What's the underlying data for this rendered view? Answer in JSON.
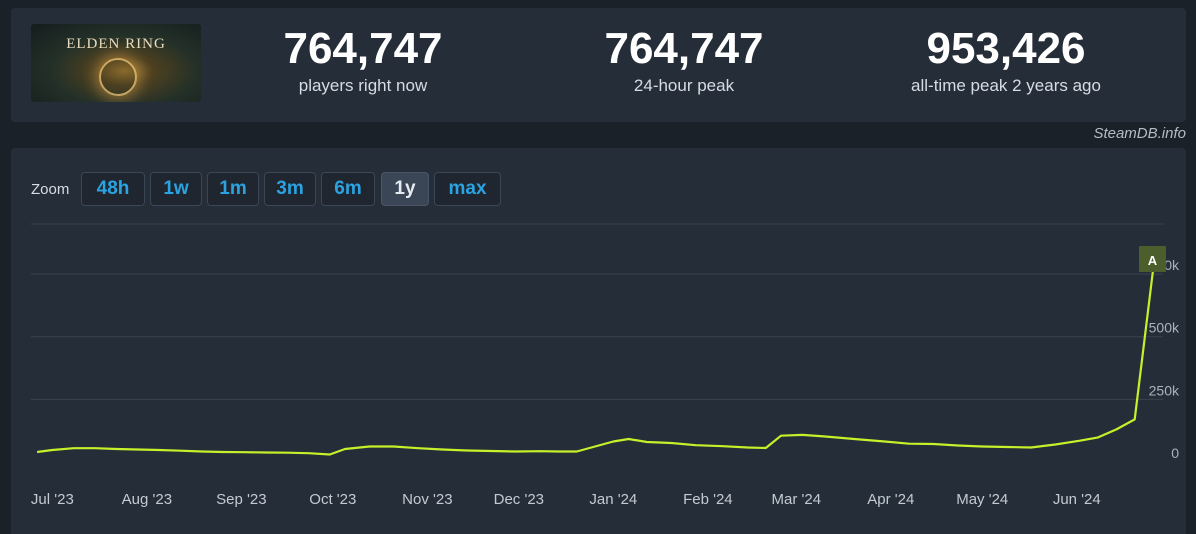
{
  "header": {
    "game_logo_text": "ELDEN RING",
    "stats": [
      {
        "value": "764,747",
        "label": "players right now"
      },
      {
        "value": "764,747",
        "label": "24-hour peak"
      },
      {
        "value": "953,426",
        "label": "all-time peak 2 years ago"
      }
    ]
  },
  "watermark": "SteamDB.info",
  "zoom": {
    "label": "Zoom",
    "buttons": [
      "48h",
      "1w",
      "1m",
      "3m",
      "6m",
      "1y",
      "max"
    ],
    "active": "1y"
  },
  "colors": {
    "line": "#c6f02a",
    "flag": "#4b5e2b",
    "grid": "#3a4350",
    "link": "#2aa3e0"
  },
  "chart_data": {
    "type": "line",
    "series": [
      {
        "values": [
          [
            "2023-06-26",
            40000
          ],
          [
            "2023-07-01",
            48000
          ],
          [
            "2023-07-08",
            55000
          ],
          [
            "2023-07-15",
            55000
          ],
          [
            "2023-07-22",
            52000
          ],
          [
            "2023-07-29",
            50000
          ],
          [
            "2023-08-05",
            48000
          ],
          [
            "2023-08-12",
            45000
          ],
          [
            "2023-08-19",
            42000
          ],
          [
            "2023-08-26",
            40000
          ],
          [
            "2023-09-02",
            39000
          ],
          [
            "2023-09-09",
            38000
          ],
          [
            "2023-09-16",
            37000
          ],
          [
            "2023-09-23",
            35000
          ],
          [
            "2023-09-30",
            30000
          ],
          [
            "2023-10-05",
            52000
          ],
          [
            "2023-10-13",
            62000
          ],
          [
            "2023-10-21",
            62000
          ],
          [
            "2023-10-29",
            55000
          ],
          [
            "2023-11-06",
            50000
          ],
          [
            "2023-11-14",
            46000
          ],
          [
            "2023-11-22",
            44000
          ],
          [
            "2023-11-30",
            42000
          ],
          [
            "2023-12-08",
            43000
          ],
          [
            "2023-12-14",
            42000
          ],
          [
            "2023-12-20",
            42000
          ],
          [
            "2023-12-26",
            62000
          ],
          [
            "2024-01-01",
            82000
          ],
          [
            "2024-01-06",
            92000
          ],
          [
            "2024-01-12",
            80000
          ],
          [
            "2024-01-20",
            76000
          ],
          [
            "2024-01-28",
            67000
          ],
          [
            "2024-02-06",
            63000
          ],
          [
            "2024-02-14",
            58000
          ],
          [
            "2024-02-20",
            56000
          ],
          [
            "2024-02-25",
            105000
          ],
          [
            "2024-03-03",
            108000
          ],
          [
            "2024-03-10",
            102000
          ],
          [
            "2024-03-20",
            92000
          ],
          [
            "2024-03-30",
            82000
          ],
          [
            "2024-04-07",
            73000
          ],
          [
            "2024-04-15",
            72000
          ],
          [
            "2024-04-23",
            66000
          ],
          [
            "2024-05-01",
            62000
          ],
          [
            "2024-05-09",
            60000
          ],
          [
            "2024-05-17",
            58000
          ],
          [
            "2024-05-25",
            70000
          ],
          [
            "2024-06-02",
            85000
          ],
          [
            "2024-06-08",
            98000
          ],
          [
            "2024-06-14",
            130000
          ],
          [
            "2024-06-20",
            170000
          ],
          [
            "2024-06-26",
            764747
          ]
        ]
      }
    ],
    "xlim": [
      "2023-06-24",
      "2024-06-26"
    ],
    "ylim": [
      0,
      950000
    ],
    "y_ticks": [
      {
        "value": 0,
        "label": "0"
      },
      {
        "value": 250000,
        "label": "250k"
      },
      {
        "value": 500000,
        "label": "500k"
      },
      {
        "value": 750000,
        "label": "750k"
      }
    ],
    "x_ticks": [
      {
        "date": "2023-07-01",
        "label": "Jul '23"
      },
      {
        "date": "2023-08-01",
        "label": "Aug '23"
      },
      {
        "date": "2023-09-01",
        "label": "Sep '23"
      },
      {
        "date": "2023-10-01",
        "label": "Oct '23"
      },
      {
        "date": "2023-11-01",
        "label": "Nov '23"
      },
      {
        "date": "2023-12-01",
        "label": "Dec '23"
      },
      {
        "date": "2024-01-01",
        "label": "Jan '24"
      },
      {
        "date": "2024-02-01",
        "label": "Feb '24"
      },
      {
        "date": "2024-03-01",
        "label": "Mar '24"
      },
      {
        "date": "2024-04-01",
        "label": "Apr '24"
      },
      {
        "date": "2024-05-01",
        "label": "May '24"
      },
      {
        "date": "2024-06-01",
        "label": "Jun '24"
      }
    ],
    "annotations": [
      {
        "date": "2024-06-26",
        "label": "A"
      }
    ],
    "grid": true
  }
}
